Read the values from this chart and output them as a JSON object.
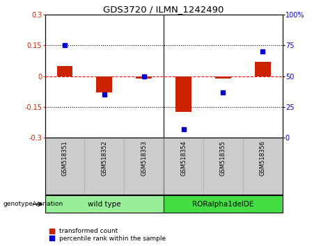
{
  "title": "GDS3720 / ILMN_1242490",
  "samples": [
    "GSM518351",
    "GSM518352",
    "GSM518353",
    "GSM518354",
    "GSM518355",
    "GSM518356"
  ],
  "red_bars": [
    0.05,
    -0.08,
    -0.01,
    -0.175,
    -0.01,
    0.07
  ],
  "blue_dots": [
    75,
    35,
    50,
    7,
    37,
    70
  ],
  "left_ylim": [
    -0.3,
    0.3
  ],
  "right_ylim": [
    0,
    100
  ],
  "left_yticks": [
    -0.3,
    -0.15,
    0,
    0.15,
    0.3
  ],
  "right_yticks": [
    0,
    25,
    50,
    75,
    100
  ],
  "hlines": [
    0.15,
    0.0,
    -0.15
  ],
  "hline_styles": [
    "dotted",
    "dashed",
    "dotted"
  ],
  "hline_colors": [
    "black",
    "red",
    "black"
  ],
  "bar_color": "#cc2200",
  "dot_color": "#0000cc",
  "bar_width": 0.4,
  "groups": [
    {
      "label": "wild type",
      "indices": [
        0,
        1,
        2
      ],
      "color": "#99ee99"
    },
    {
      "label": "RORalpha1delDE",
      "indices": [
        3,
        4,
        5
      ],
      "color": "#44dd44"
    }
  ],
  "group_label": "genotype/variation",
  "legend_items": [
    {
      "label": "transformed count",
      "color": "#cc2200"
    },
    {
      "label": "percentile rank within the sample",
      "color": "#0000cc"
    }
  ],
  "left_ylabel_color": "#cc2200",
  "right_ylabel_color": "#0000cc",
  "bg_color": "#ffffff",
  "plot_bg": "#ffffff",
  "tick_area_color": "#cccccc",
  "separator_positions": [
    2.5
  ]
}
